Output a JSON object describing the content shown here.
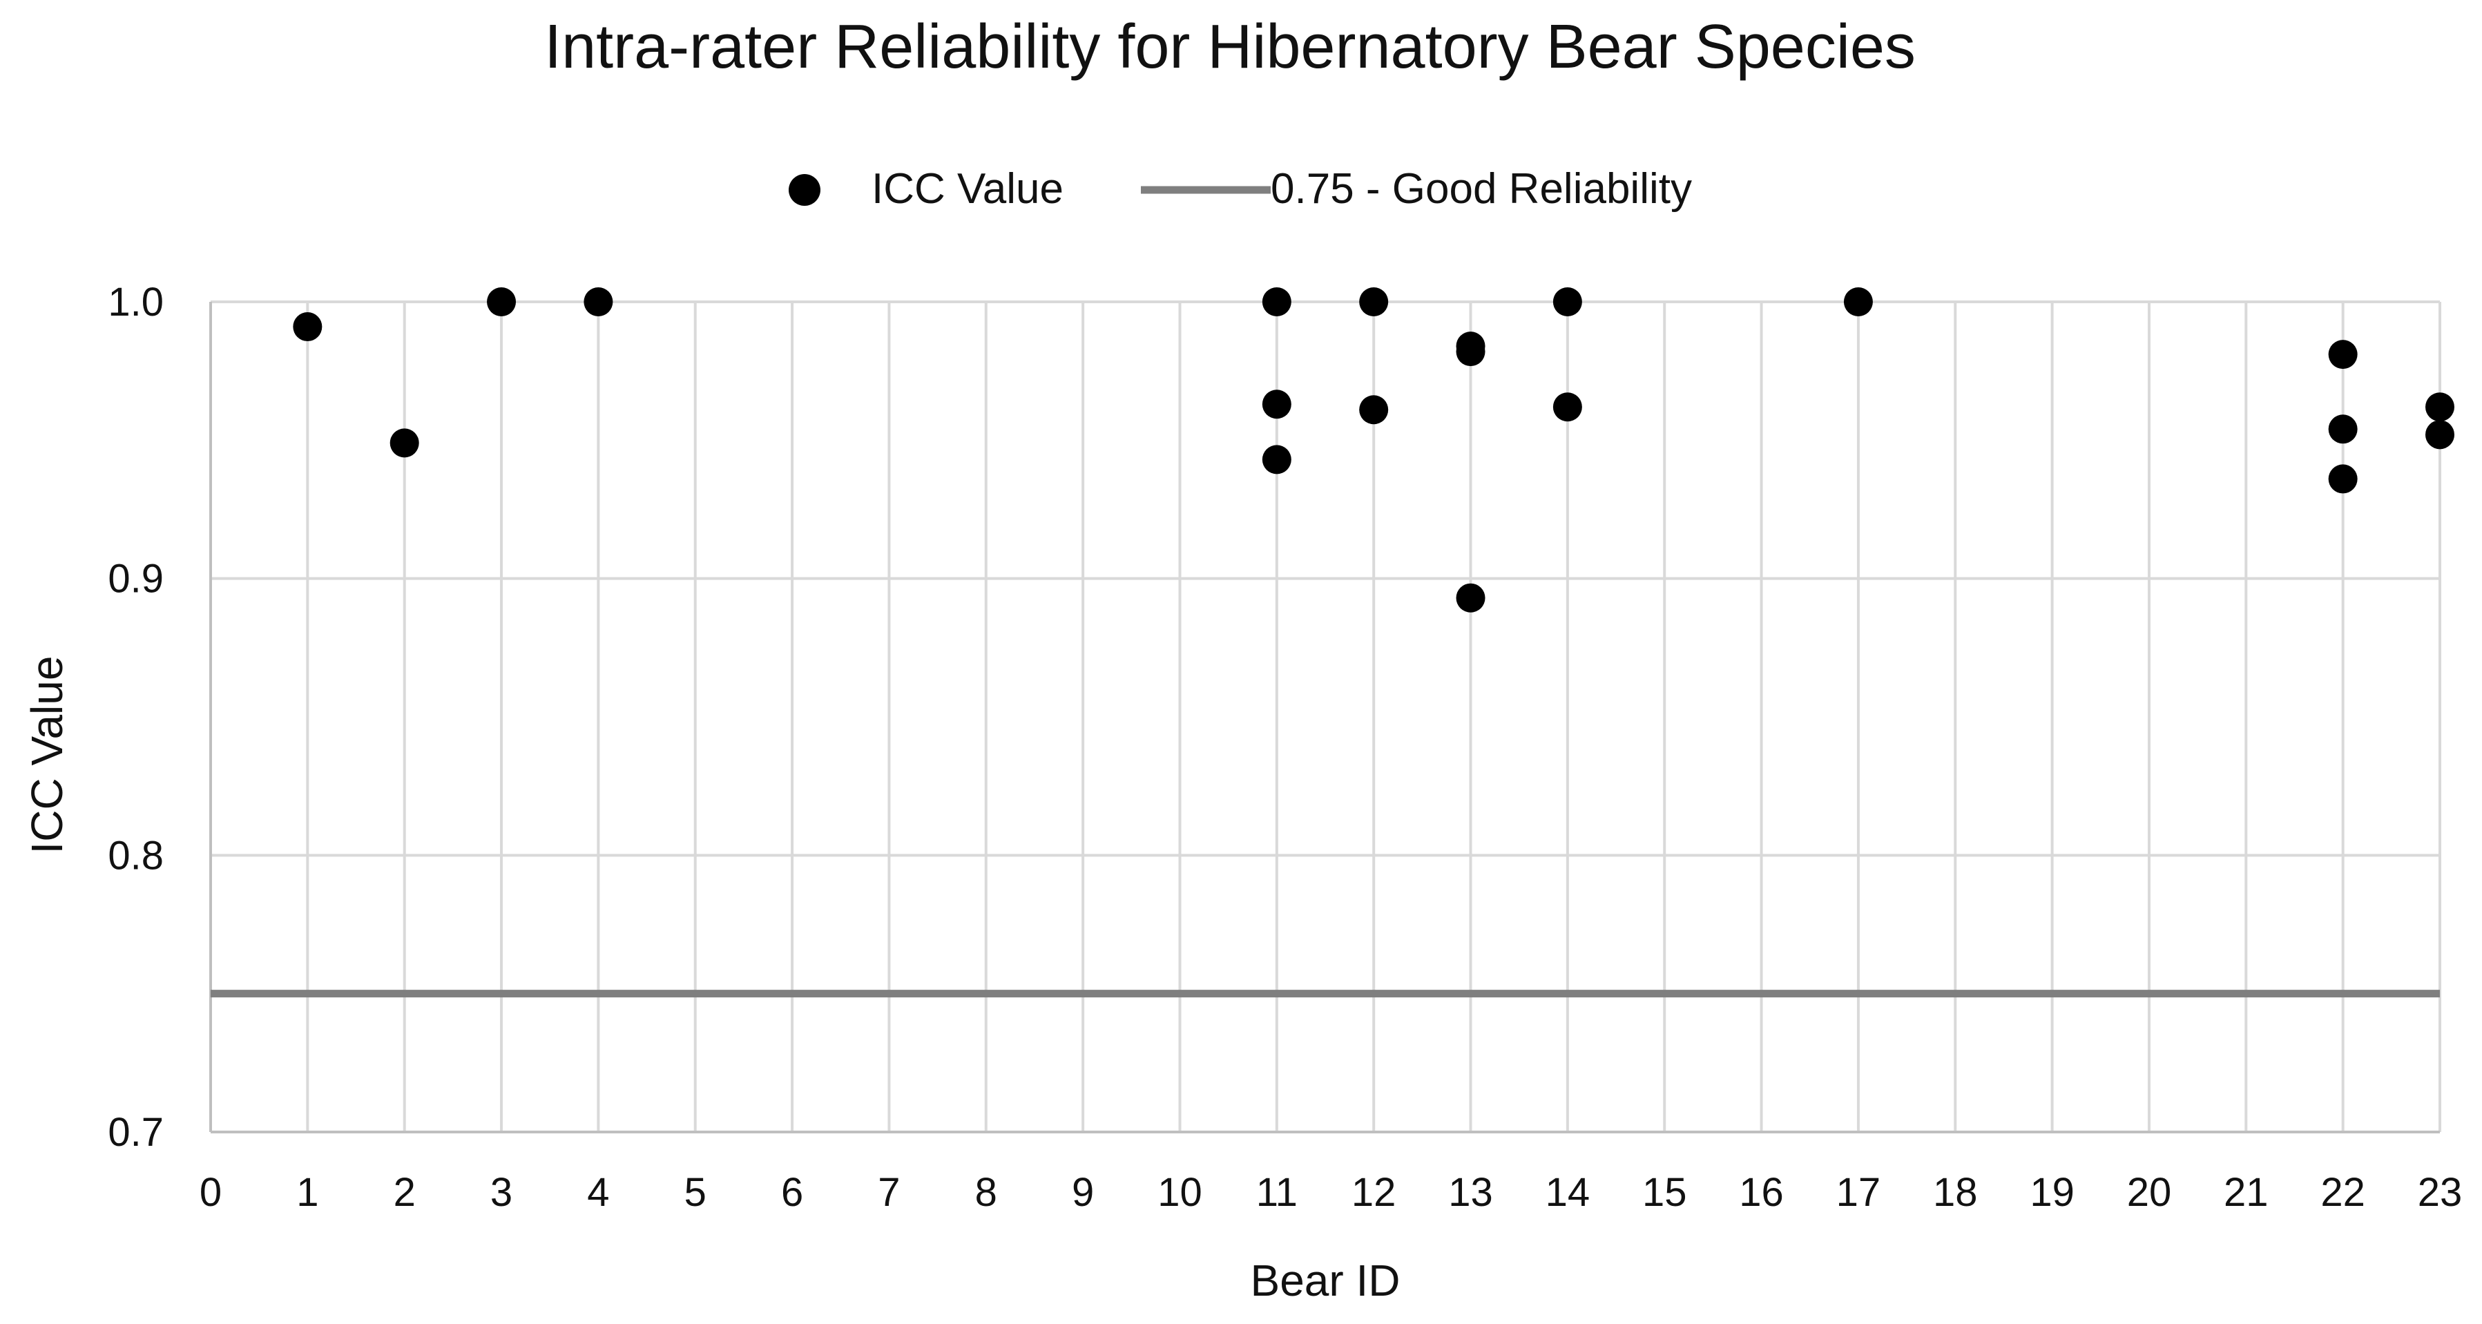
{
  "chart_data": {
    "type": "scatter",
    "title": "Intra-rater Reliability for Hibernatory Bear Species",
    "xlabel": "Bear ID",
    "ylabel": "ICC Value",
    "categories": [
      "0",
      "1",
      "2",
      "3",
      "4",
      "5",
      "6",
      "7",
      "8",
      "9",
      "10",
      "11",
      "12",
      "13",
      "14",
      "15",
      "16",
      "17",
      "18",
      "19",
      "20",
      "21",
      "22",
      "23"
    ],
    "xlim": [
      0,
      23
    ],
    "ylim": [
      0.7,
      1.0
    ],
    "yticks": [
      "0.7",
      "0.8",
      "0.9",
      "1.0"
    ],
    "grid": true,
    "legend_position": "top-center",
    "series": [
      {
        "name": "ICC Value",
        "kind": "scatter",
        "color": "#000000",
        "points": [
          {
            "x": 1,
            "y": 0.991
          },
          {
            "x": 2,
            "y": 0.949
          },
          {
            "x": 3,
            "y": 1.0
          },
          {
            "x": 4,
            "y": 1.0
          },
          {
            "x": 11,
            "y": 1.0
          },
          {
            "x": 11,
            "y": 0.963
          },
          {
            "x": 11,
            "y": 0.943
          },
          {
            "x": 12,
            "y": 1.0
          },
          {
            "x": 12,
            "y": 0.961
          },
          {
            "x": 13,
            "y": 0.984
          },
          {
            "x": 13,
            "y": 0.982
          },
          {
            "x": 13,
            "y": 0.893
          },
          {
            "x": 14,
            "y": 1.0
          },
          {
            "x": 14,
            "y": 0.962
          },
          {
            "x": 17,
            "y": 1.0
          },
          {
            "x": 22,
            "y": 0.981
          },
          {
            "x": 22,
            "y": 0.954
          },
          {
            "x": 22,
            "y": 0.936
          },
          {
            "x": 23,
            "y": 0.962
          },
          {
            "x": 23,
            "y": 0.952
          }
        ]
      },
      {
        "name": "0.75 - Good Reliability",
        "kind": "reference-line",
        "color": "#7f7f7f",
        "value": 0.75
      }
    ]
  }
}
